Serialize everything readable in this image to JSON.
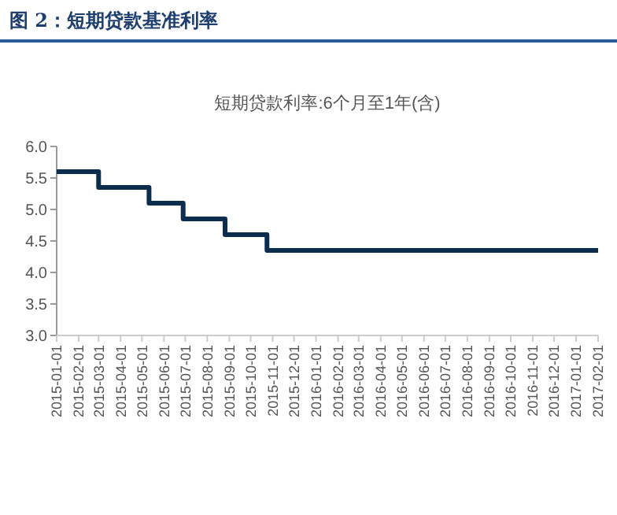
{
  "chart_data": {
    "type": "step",
    "title": "图 2：短期贷款基准利率",
    "subtitle": "短期贷款利率:6个月至1年(含)",
    "x": [
      "2015-01-01",
      "2015-03-01",
      "2015-05-11",
      "2015-06-28",
      "2015-08-26",
      "2015-10-24",
      "2017-02-01"
    ],
    "series": [
      {
        "color": "#0d2d4f",
        "values": [
          5.6,
          5.35,
          5.1,
          4.85,
          4.6,
          4.35,
          4.35
        ]
      }
    ],
    "xlim": [
      "2015-01-01",
      "2017-02-01"
    ],
    "xticks": [
      "2015-01-01",
      "2015-02-01",
      "2015-03-01",
      "2015-04-01",
      "2015-05-01",
      "2015-06-01",
      "2015-07-01",
      "2015-08-01",
      "2015-09-01",
      "2015-10-01",
      "2015-11-01",
      "2015-12-01",
      "2016-01-01",
      "2016-02-01",
      "2016-03-01",
      "2016-04-01",
      "2016-05-01",
      "2016-06-01",
      "2016-07-01",
      "2016-08-01",
      "2016-09-01",
      "2016-10-01",
      "2016-11-01",
      "2016-12-01",
      "2017-01-01",
      "2017-02-01"
    ],
    "ylim": [
      3,
      6
    ],
    "yticks": [
      {
        "value": 3,
        "label": "3.0"
      },
      {
        "value": 3.5,
        "label": "3.5"
      },
      {
        "value": 4,
        "label": "4.0"
      },
      {
        "value": 4.5,
        "label": "4.5"
      },
      {
        "value": 5,
        "label": "5.0"
      },
      {
        "value": 5.5,
        "label": "5.5"
      },
      {
        "value": 6,
        "label": "6.0"
      }
    ],
    "grid": false
  }
}
